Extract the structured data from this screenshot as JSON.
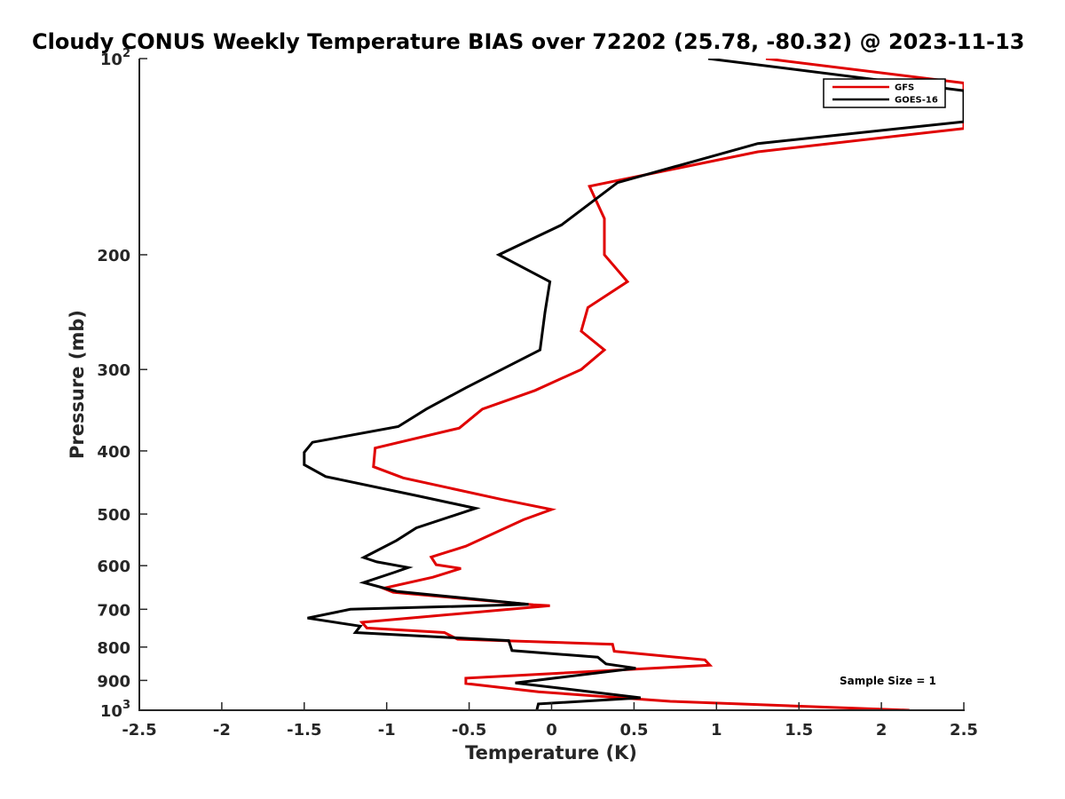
{
  "chart_data": {
    "type": "line",
    "title": "Cloudy CONUS Weekly Temperature BIAS over 72202 (25.78, -80.32) @ 2023-11-13",
    "xlabel": "Temperature (K)",
    "ylabel": "Pressure (mb)",
    "xlim": [
      -2.5,
      2.5
    ],
    "ylim": [
      100,
      1000
    ],
    "y_scale": "log",
    "y_reversed": true,
    "grid": false,
    "legend_position": "top-right",
    "x_ticks": [
      "-2.5",
      "-2",
      "-1.5",
      "-1",
      "-0.5",
      "0",
      "0.5",
      "1",
      "1.5",
      "2",
      "2.5"
    ],
    "y_ticks": [
      {
        "value": 100,
        "base": "10",
        "exp": "2"
      },
      {
        "value": 200,
        "label": "200"
      },
      {
        "value": 300,
        "label": "300"
      },
      {
        "value": 400,
        "label": "400"
      },
      {
        "value": 500,
        "label": "500"
      },
      {
        "value": 600,
        "label": "600"
      },
      {
        "value": 700,
        "label": "700"
      },
      {
        "value": 800,
        "label": "800"
      },
      {
        "value": 900,
        "label": "900"
      },
      {
        "value": 1000,
        "base": "10",
        "exp": "3"
      }
    ],
    "annotation": "Sample Size = 1",
    "series": [
      {
        "name": "GFS",
        "color": "#e00000",
        "points": [
          {
            "x": 1.3,
            "p": 100
          },
          {
            "x": 2.5,
            "p": 109
          },
          {
            "x": 2.5,
            "p": 128
          },
          {
            "x": 1.25,
            "p": 139
          },
          {
            "x": 0.23,
            "p": 157
          },
          {
            "x": 0.32,
            "p": 176
          },
          {
            "x": 0.32,
            "p": 200
          },
          {
            "x": 0.46,
            "p": 220
          },
          {
            "x": 0.22,
            "p": 241
          },
          {
            "x": 0.18,
            "p": 262
          },
          {
            "x": 0.32,
            "p": 280
          },
          {
            "x": 0.18,
            "p": 300
          },
          {
            "x": -0.1,
            "p": 323
          },
          {
            "x": -0.42,
            "p": 345
          },
          {
            "x": -0.56,
            "p": 369
          },
          {
            "x": -1.07,
            "p": 396
          },
          {
            "x": -1.08,
            "p": 423
          },
          {
            "x": -0.9,
            "p": 440
          },
          {
            "x": -0.3,
            "p": 475
          },
          {
            "x": 0.0,
            "p": 492
          },
          {
            "x": -0.17,
            "p": 510
          },
          {
            "x": -0.52,
            "p": 560
          },
          {
            "x": -0.73,
            "p": 582
          },
          {
            "x": -0.7,
            "p": 598
          },
          {
            "x": -0.55,
            "p": 606
          },
          {
            "x": -0.72,
            "p": 625
          },
          {
            "x": -1.02,
            "p": 650
          },
          {
            "x": -0.96,
            "p": 659
          },
          {
            "x": -0.11,
            "p": 689
          },
          {
            "x": -0.01,
            "p": 691
          },
          {
            "x": -1.15,
            "p": 733
          },
          {
            "x": -1.12,
            "p": 748
          },
          {
            "x": -0.65,
            "p": 760
          },
          {
            "x": -0.57,
            "p": 778
          },
          {
            "x": 0.37,
            "p": 792
          },
          {
            "x": 0.38,
            "p": 812
          },
          {
            "x": 0.93,
            "p": 837
          },
          {
            "x": 0.96,
            "p": 853
          },
          {
            "x": -0.52,
            "p": 893
          },
          {
            "x": -0.52,
            "p": 910
          },
          {
            "x": -0.08,
            "p": 937
          },
          {
            "x": 0.72,
            "p": 969
          },
          {
            "x": 2.17,
            "p": 1000
          }
        ]
      },
      {
        "name": "GOES-16",
        "color": "#000000",
        "points": [
          {
            "x": 0.95,
            "p": 100
          },
          {
            "x": 2.5,
            "p": 112
          },
          {
            "x": 2.5,
            "p": 125
          },
          {
            "x": 1.25,
            "p": 135
          },
          {
            "x": 0.4,
            "p": 155
          },
          {
            "x": 0.06,
            "p": 180
          },
          {
            "x": -0.32,
            "p": 200
          },
          {
            "x": -0.01,
            "p": 220
          },
          {
            "x": -0.04,
            "p": 245
          },
          {
            "x": -0.07,
            "p": 280
          },
          {
            "x": -0.52,
            "p": 320
          },
          {
            "x": -0.76,
            "p": 345
          },
          {
            "x": -0.93,
            "p": 367
          },
          {
            "x": -1.45,
            "p": 388
          },
          {
            "x": -1.5,
            "p": 402
          },
          {
            "x": -1.5,
            "p": 420
          },
          {
            "x": -1.37,
            "p": 438
          },
          {
            "x": -0.81,
            "p": 469
          },
          {
            "x": -0.46,
            "p": 490
          },
          {
            "x": -0.82,
            "p": 525
          },
          {
            "x": -0.94,
            "p": 549
          },
          {
            "x": -1.14,
            "p": 583
          },
          {
            "x": -1.06,
            "p": 592
          },
          {
            "x": -0.87,
            "p": 604
          },
          {
            "x": -0.95,
            "p": 614
          },
          {
            "x": -1.14,
            "p": 637
          },
          {
            "x": -0.94,
            "p": 657
          },
          {
            "x": -0.14,
            "p": 688
          },
          {
            "x": -1.22,
            "p": 700
          },
          {
            "x": -1.48,
            "p": 722
          },
          {
            "x": -1.16,
            "p": 743
          },
          {
            "x": -1.19,
            "p": 760
          },
          {
            "x": -0.26,
            "p": 782
          },
          {
            "x": -0.24,
            "p": 810
          },
          {
            "x": 0.28,
            "p": 829
          },
          {
            "x": 0.33,
            "p": 849
          },
          {
            "x": 0.51,
            "p": 862
          },
          {
            "x": -0.22,
            "p": 908
          },
          {
            "x": 0.54,
            "p": 957
          },
          {
            "x": -0.08,
            "p": 978
          },
          {
            "x": -0.09,
            "p": 1000
          }
        ]
      }
    ]
  }
}
